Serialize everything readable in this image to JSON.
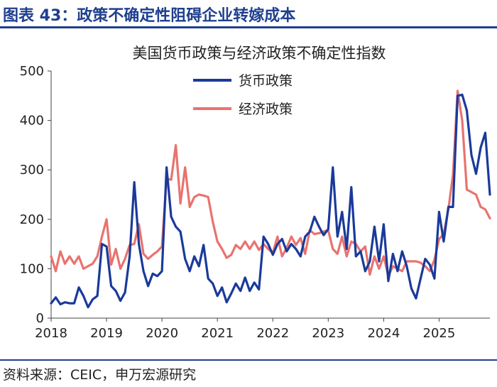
{
  "header": {
    "title": "图表 43：政策不确定性阻碍企业转嫁成本"
  },
  "footer": {
    "source": "资料来源：CEIC，申万宏源研究"
  },
  "colors": {
    "brand": "#1f3f8f",
    "monetary": "#1a3a9a",
    "economic": "#e8736f"
  },
  "chart_data": {
    "type": "line",
    "title": "美国货币政策与经济政策不确定性指数",
    "xlabel": "",
    "ylabel": "",
    "x_ticks": [
      "2018",
      "2019",
      "2020",
      "2021",
      "2022",
      "2023",
      "2024",
      "2025"
    ],
    "xlim": [
      "2018-01",
      "2025-12"
    ],
    "ylim": [
      0,
      500
    ],
    "y_ticks": [
      0,
      100,
      200,
      300,
      400,
      500
    ],
    "legend_position": "top-left",
    "grid": false,
    "x": [
      "2018-01",
      "2018-02",
      "2018-03",
      "2018-04",
      "2018-05",
      "2018-06",
      "2018-07",
      "2018-08",
      "2018-09",
      "2018-10",
      "2018-11",
      "2018-12",
      "2019-01",
      "2019-02",
      "2019-03",
      "2019-04",
      "2019-05",
      "2019-06",
      "2019-07",
      "2019-08",
      "2019-09",
      "2019-10",
      "2019-11",
      "2019-12",
      "2020-01",
      "2020-02",
      "2020-03",
      "2020-04",
      "2020-05",
      "2020-06",
      "2020-07",
      "2020-08",
      "2020-09",
      "2020-10",
      "2020-11",
      "2020-12",
      "2021-01",
      "2021-02",
      "2021-03",
      "2021-04",
      "2021-05",
      "2021-06",
      "2021-07",
      "2021-08",
      "2021-09",
      "2021-10",
      "2021-11",
      "2021-12",
      "2022-01",
      "2022-02",
      "2022-03",
      "2022-04",
      "2022-05",
      "2022-06",
      "2022-07",
      "2022-08",
      "2022-09",
      "2022-10",
      "2022-11",
      "2022-12",
      "2023-01",
      "2023-02",
      "2023-03",
      "2023-04",
      "2023-05",
      "2023-06",
      "2023-07",
      "2023-08",
      "2023-09",
      "2023-10",
      "2023-11",
      "2023-12",
      "2024-01",
      "2024-02",
      "2024-03",
      "2024-04",
      "2024-05",
      "2024-06",
      "2024-07",
      "2024-08",
      "2024-09",
      "2024-10",
      "2024-11",
      "2024-12",
      "2025-01",
      "2025-02",
      "2025-03",
      "2025-04",
      "2025-05",
      "2025-06",
      "2025-07",
      "2025-08",
      "2025-09",
      "2025-10",
      "2025-11",
      "2025-12"
    ],
    "series": [
      {
        "name": "货币政策",
        "values": [
          30,
          42,
          28,
          32,
          30,
          30,
          62,
          45,
          22,
          38,
          45,
          150,
          145,
          65,
          55,
          35,
          52,
          125,
          275,
          150,
          95,
          65,
          90,
          85,
          95,
          305,
          205,
          185,
          175,
          120,
          95,
          125,
          105,
          148,
          80,
          70,
          45,
          62,
          32,
          50,
          70,
          55,
          82,
          55,
          72,
          58,
          165,
          150,
          128,
          150,
          160,
          135,
          150,
          140,
          125,
          165,
          175,
          205,
          185,
          168,
          180,
          305,
          165,
          215,
          140,
          265,
          125,
          135,
          95,
          115,
          185,
          115,
          190,
          75,
          130,
          95,
          135,
          105,
          60,
          40,
          80,
          120,
          108,
          80,
          215,
          155,
          225,
          225,
          450,
          452,
          420,
          330,
          292,
          345,
          375,
          250
        ]
      },
      {
        "name": "经济政策",
        "values": [
          125,
          95,
          135,
          110,
          125,
          110,
          125,
          100,
          105,
          110,
          125,
          165,
          200,
          108,
          140,
          100,
          120,
          148,
          150,
          190,
          130,
          120,
          128,
          135,
          145,
          282,
          280,
          350,
          232,
          305,
          225,
          245,
          250,
          248,
          245,
          195,
          155,
          140,
          122,
          128,
          148,
          140,
          155,
          140,
          155,
          138,
          150,
          140,
          132,
          165,
          125,
          142,
          165,
          148,
          162,
          130,
          178,
          170,
          172,
          175,
          178,
          140,
          130,
          165,
          125,
          155,
          150,
          135,
          145,
          88,
          125,
          100,
          125,
          85,
          105,
          100,
          95,
          115,
          115,
          115,
          112,
          105,
          95,
          118,
          160,
          170,
          220,
          290,
          460,
          400,
          260,
          255,
          250,
          225,
          220,
          202
        ]
      }
    ]
  }
}
